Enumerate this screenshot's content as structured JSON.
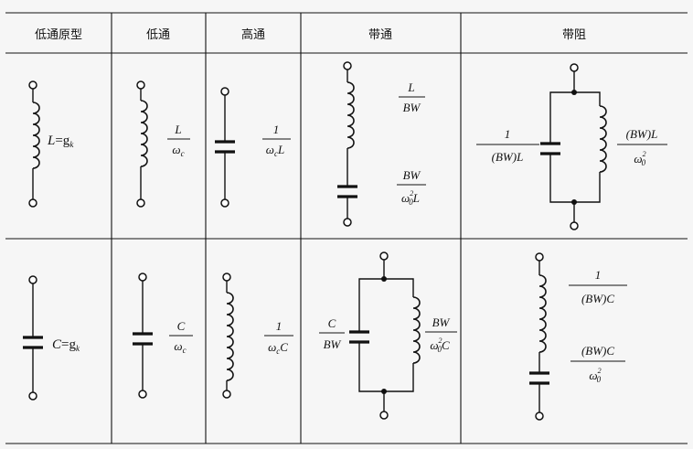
{
  "columns": [
    "低通原型",
    "低通",
    "高通",
    "带通",
    "带阻"
  ],
  "rows": [
    {
      "prototype": {
        "sym": "L",
        "sub": "k",
        "eq": "=g"
      },
      "lowpass": {
        "num": "L",
        "den": "ω",
        "den_sub": "c"
      },
      "highpass": {
        "num": "1",
        "den": "ω",
        "den_sub": "c",
        "den_tail": "L"
      },
      "bandpass": {
        "a": {
          "num": "L",
          "den": "BW"
        },
        "b": {
          "num": "BW",
          "den": "ω",
          "den_sup": "2",
          "den_sub": "0",
          "den_tail": "L"
        }
      },
      "bandstop": {
        "a": {
          "num": "1",
          "den": "(BW)L"
        },
        "b": {
          "num": "(BW)L",
          "den": "ω",
          "den_sup": "2",
          "den_sub": "0"
        }
      }
    },
    {
      "prototype": {
        "sym": "C",
        "sub": "k",
        "eq": "=g"
      },
      "lowpass": {
        "num": "C",
        "den": "ω",
        "den_sub": "c"
      },
      "highpass": {
        "num": "1",
        "den": "ω",
        "den_sub": "c",
        "den_tail": "C"
      },
      "bandpass": {
        "a": {
          "num": "C",
          "den": "BW"
        },
        "b": {
          "num": "BW",
          "den": "ω",
          "den_sup": "2",
          "den_sub": "0",
          "den_tail": "C"
        }
      },
      "bandstop": {
        "a": {
          "num": "1",
          "den": "(BW)C"
        },
        "b": {
          "num": "(BW)C",
          "den": "ω",
          "den_sup": "2",
          "den_sub": "0"
        }
      }
    }
  ]
}
